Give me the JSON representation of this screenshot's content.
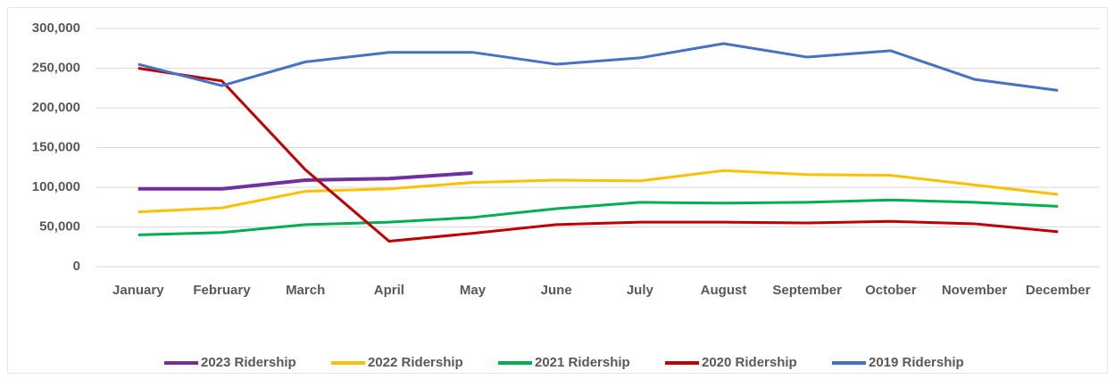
{
  "chart_data": {
    "type": "line",
    "categories": [
      "January",
      "February",
      "March",
      "April",
      "May",
      "June",
      "July",
      "August",
      "September",
      "October",
      "November",
      "December"
    ],
    "series": [
      {
        "name": "2023 Ridership",
        "color": "#7030a0",
        "values": [
          98000,
          98000,
          109000,
          111000,
          118000,
          null,
          null,
          null,
          null,
          null,
          null,
          null
        ]
      },
      {
        "name": "2022 Ridership",
        "color": "#ffc000",
        "values": [
          69000,
          74000,
          95000,
          98000,
          106000,
          109000,
          108000,
          121000,
          116000,
          115000,
          103000,
          91000
        ]
      },
      {
        "name": "2021 Ridership",
        "color": "#00b050",
        "values": [
          40000,
          43000,
          53000,
          56000,
          62000,
          73000,
          81000,
          80000,
          81000,
          84000,
          81000,
          76000
        ]
      },
      {
        "name": "2020 Ridership",
        "color": "#c00000",
        "values": [
          250000,
          234000,
          122000,
          32000,
          42000,
          53000,
          56000,
          56000,
          55000,
          57000,
          54000,
          44000
        ]
      },
      {
        "name": "2019 Ridership",
        "color": "#4472c4",
        "values": [
          255000,
          228000,
          258000,
          270000,
          270000,
          255000,
          263000,
          281000,
          264000,
          272000,
          236000,
          222000
        ]
      }
    ],
    "ylim": [
      0,
      300000
    ],
    "yticks": [
      {
        "value": 0,
        "label": "0"
      },
      {
        "value": 50000,
        "label": "50,000"
      },
      {
        "value": 100000,
        "label": "100,000"
      },
      {
        "value": 150000,
        "label": "150,000"
      },
      {
        "value": 200000,
        "label": "200,000"
      },
      {
        "value": 250000,
        "label": "250,000"
      },
      {
        "value": 300000,
        "label": "300,000"
      }
    ],
    "grid": true,
    "legend": "bottom"
  }
}
